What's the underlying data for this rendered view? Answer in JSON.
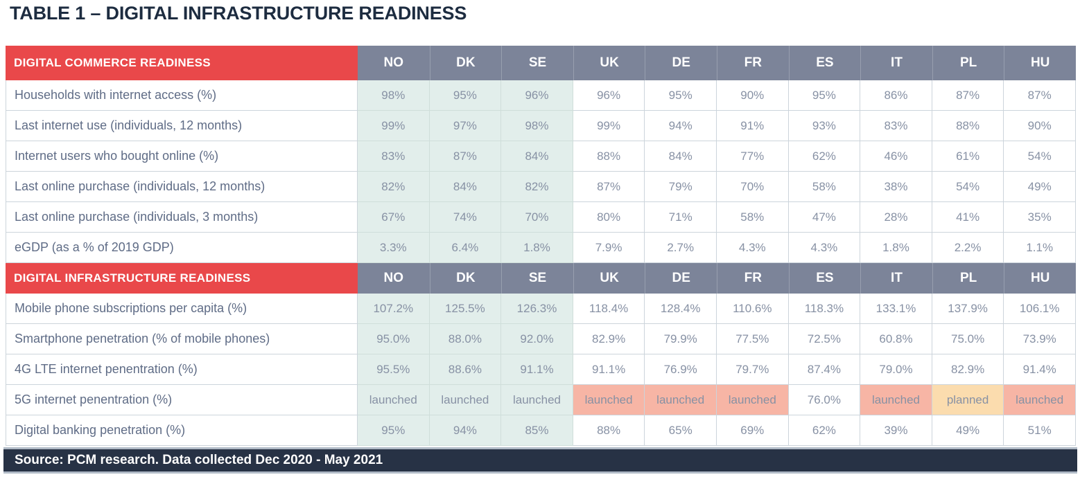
{
  "title": "TABLE 1 – DIGITAL INFRASTRUCTURE READINESS",
  "footer": "Source: PCM research. Data collected Dec 2020 - May 2021",
  "colors": {
    "section_header_red": "#e9484a",
    "column_header_slate": "#7c8499",
    "nordic_column_teal": "#e2eeeb",
    "launched_salmon": "#f7b5a5",
    "planned_peach": "#fbdcae",
    "footer_navy": "#273245",
    "title_navy": "#1d2c40"
  },
  "chart_data": {
    "type": "table",
    "title": "TABLE 1 – DIGITAL INFRASTRUCTURE READINESS",
    "source": "Source: PCM research. Data collected Dec 2020 - May 2021",
    "columns": [
      "NO",
      "DK",
      "SE",
      "UK",
      "DE",
      "FR",
      "ES",
      "IT",
      "PL",
      "HU"
    ],
    "sections": [
      {
        "header": "DIGITAL COMMERCE READINESS",
        "rows": [
          {
            "label": "Households with internet access (%)",
            "values": [
              "98%",
              "95%",
              "96%",
              "96%",
              "95%",
              "90%",
              "95%",
              "86%",
              "87%",
              "87%"
            ]
          },
          {
            "label": "Last internet use (individuals, 12 months)",
            "values": [
              "99%",
              "97%",
              "98%",
              "99%",
              "94%",
              "91%",
              "93%",
              "83%",
              "88%",
              "90%"
            ]
          },
          {
            "label": "Internet users who bought online (%)",
            "values": [
              "83%",
              "87%",
              "84%",
              "88%",
              "84%",
              "77%",
              "62%",
              "46%",
              "61%",
              "54%"
            ]
          },
          {
            "label": "Last online purchase (individuals, 12 months)",
            "values": [
              "82%",
              "84%",
              "82%",
              "87%",
              "79%",
              "70%",
              "58%",
              "38%",
              "54%",
              "49%"
            ]
          },
          {
            "label": "Last online purchase (individuals, 3 months)",
            "values": [
              "67%",
              "74%",
              "70%",
              "80%",
              "71%",
              "58%",
              "47%",
              "28%",
              "41%",
              "35%"
            ]
          },
          {
            "label": "eGDP (as a % of 2019 GDP)",
            "values": [
              "3.3%",
              "6.4%",
              "1.8%",
              "7.9%",
              "2.7%",
              "4.3%",
              "4.3%",
              "1.8%",
              "2.2%",
              "1.1%"
            ]
          }
        ]
      },
      {
        "header": "DIGITAL INFRASTRUCTURE READINESS",
        "rows": [
          {
            "label": "Mobile phone subscriptions per capita (%)",
            "values": [
              "107.2%",
              "125.5%",
              "126.3%",
              "118.4%",
              "128.4%",
              "110.6%",
              "118.3%",
              "133.1%",
              "137.9%",
              "106.1%"
            ]
          },
          {
            "label": "Smartphone penetration (% of mobile phones)",
            "values": [
              "95.0%",
              "88.0%",
              "92.0%",
              "82.9%",
              "79.9%",
              "77.5%",
              "72.5%",
              "60.8%",
              "75.0%",
              "73.9%"
            ]
          },
          {
            "label": "4G LTE internet penentration (%)",
            "values": [
              "95.5%",
              "88.6%",
              "91.1%",
              "91.1%",
              "76.9%",
              "79.7%",
              "87.4%",
              "79.0%",
              "82.9%",
              "91.4%"
            ]
          },
          {
            "label": "5G internet penentration (%)",
            "values": [
              "launched",
              "launched",
              "launched",
              "launched",
              "launched",
              "launched",
              "76.0%",
              "launched",
              "planned",
              "launched"
            ],
            "cell_bg": [
              "teal",
              "teal",
              "teal",
              "salmon",
              "salmon",
              "salmon",
              "white",
              "salmon",
              "peach",
              "salmon"
            ]
          },
          {
            "label": "Digital banking penetration (%)",
            "values": [
              "95%",
              "94%",
              "85%",
              "88%",
              "65%",
              "69%",
              "62%",
              "39%",
              "49%",
              "51%"
            ]
          }
        ]
      }
    ]
  }
}
